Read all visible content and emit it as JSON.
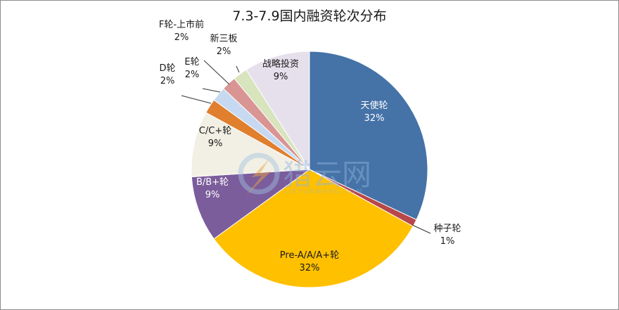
{
  "chart_data": {
    "type": "pie",
    "title": "7.3-7.9国内融资轮次分布",
    "slices": [
      {
        "name": "天使轮",
        "value": 32,
        "label": "32%",
        "color": "#4572a7"
      },
      {
        "name": "种子轮",
        "value": 1,
        "label": "1%",
        "color": "#b8474a"
      },
      {
        "name": "Pre-A/A/A+轮",
        "value": 32,
        "label": "32%",
        "color": "#ffc000"
      },
      {
        "name": "B/B+轮",
        "value": 9,
        "label": "9%",
        "color": "#7b5d9c"
      },
      {
        "name": "C/C+轮",
        "value": 9,
        "label": "9%",
        "color": "#f2efe4"
      },
      {
        "name": "D轮",
        "value": 2,
        "label": "2%",
        "color": "#e07f2e"
      },
      {
        "name": "E轮",
        "value": 2,
        "label": "2%",
        "color": "#c6d9f0"
      },
      {
        "name": "F轮-上市前",
        "value": 2,
        "label": "2%",
        "color": "#d99594"
      },
      {
        "name": "新三板",
        "value": 2,
        "label": "2%",
        "color": "#d7e4bd"
      },
      {
        "name": "战略投资",
        "value": 9,
        "label": "9%",
        "color": "#e6e0ec"
      }
    ]
  },
  "watermark": {
    "main": "猎云网",
    "sub": "LIEYUNWANG.COM"
  }
}
